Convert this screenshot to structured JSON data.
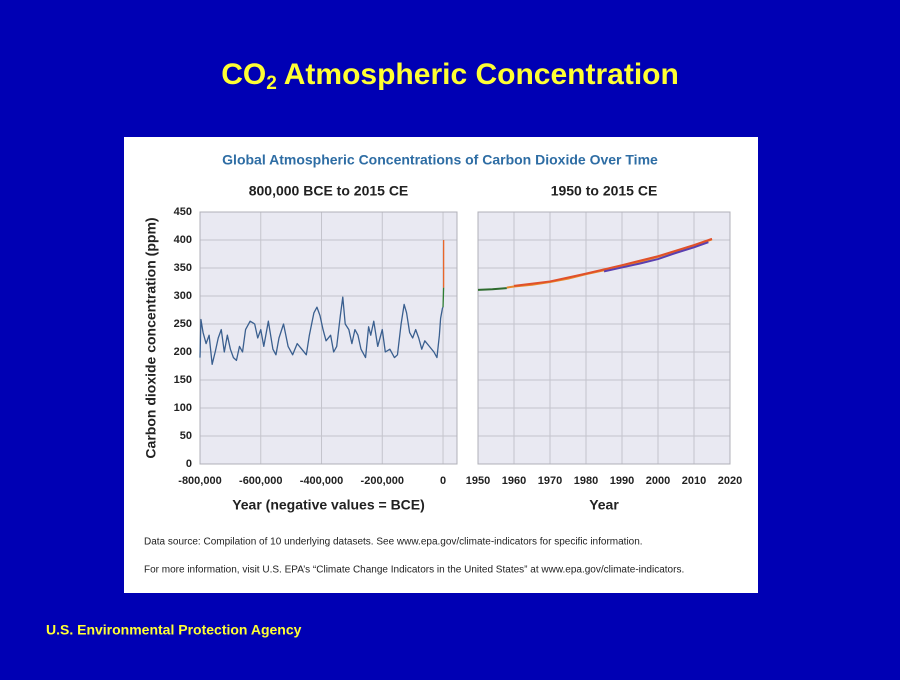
{
  "slide": {
    "title": {
      "main": "CO",
      "subscript": "2",
      "rest": "Atmospheric Concentration"
    },
    "footer": "U.S. Environmental Protection Agency"
  },
  "figure": {
    "title": "Global Atmospheric Concentrations of Carbon Dioxide Over Time",
    "notes": [
      "Data source: Compilation of 10 underlying datasets. See www.epa.gov/climate-indicators for specific information.",
      "For more information, visit U.S. EPA’s “Climate Change Indicators in the United States” at www.epa.gov/climate-indicators."
    ]
  },
  "chart_data": [
    {
      "type": "line",
      "title": "800,000 BCE to 2015 CE",
      "x_label": "Year (negative values = BCE)",
      "y_label": "Carbon dioxide concentration (ppm)",
      "xlim": [
        -800000,
        46000
      ],
      "ylim": [
        0,
        450
      ],
      "xticks": [
        {
          "value": -800000,
          "label": "-800,000"
        },
        {
          "value": -600000,
          "label": "-600,000"
        },
        {
          "value": -400000,
          "label": "-400,000"
        },
        {
          "value": -200000,
          "label": "-200,000"
        },
        0
      ],
      "yticks": [
        0,
        50,
        100,
        150,
        200,
        250,
        300,
        350,
        400,
        450
      ],
      "show_ytick_labels": true,
      "grid": true,
      "series": [
        {
          "color": "#3a5f8f",
          "x": [
            -800000,
            -797000,
            -790000,
            -780000,
            -770000,
            -760000,
            -750000,
            -740000,
            -730000,
            -720000,
            -710000,
            -700000,
            -690000,
            -680000,
            -670000,
            -660000,
            -650000,
            -635000,
            -620000,
            -610000,
            -600000,
            -590000,
            -575000,
            -560000,
            -550000,
            -540000,
            -525000,
            -510000,
            -495000,
            -480000,
            -465000,
            -450000,
            -440000,
            -425000,
            -415000,
            -405000,
            -395000,
            -385000,
            -370000,
            -360000,
            -350000,
            -338000,
            -330000,
            -322000,
            -310000,
            -300000,
            -290000,
            -280000,
            -270000,
            -255000,
            -245000,
            -238000,
            -228000,
            -215000,
            -200000,
            -190000,
            -175000,
            -160000,
            -150000,
            -138000,
            -128000,
            -120000,
            -110000,
            -100000,
            -90000,
            -80000,
            -70000,
            -60000,
            -45000,
            -30000,
            -20000,
            -12000,
            -8000,
            -2000,
            0
          ],
          "values": [
            190,
            258,
            235,
            215,
            230,
            178,
            200,
            225,
            240,
            200,
            230,
            205,
            190,
            185,
            210,
            200,
            240,
            255,
            250,
            225,
            240,
            210,
            255,
            205,
            195,
            225,
            250,
            210,
            195,
            215,
            205,
            195,
            230,
            270,
            280,
            265,
            240,
            220,
            230,
            200,
            210,
            265,
            298,
            250,
            240,
            215,
            240,
            230,
            205,
            190,
            245,
            230,
            255,
            210,
            240,
            200,
            205,
            190,
            195,
            250,
            285,
            270,
            235,
            225,
            240,
            225,
            205,
            220,
            210,
            200,
            190,
            230,
            260,
            278,
            280
          ]
        },
        {
          "color": "#2e7d32",
          "x": [
            0,
            1958
          ],
          "values": [
            280,
            315
          ]
        },
        {
          "color": "#e8662a",
          "x": [
            1958,
            2015
          ],
          "values": [
            315,
            400
          ]
        }
      ]
    },
    {
      "type": "line",
      "title": "1950 to 2015 CE",
      "x_label": "Year",
      "xlim": [
        1950,
        2020
      ],
      "ylim": [
        0,
        450
      ],
      "xticks": [
        1950,
        1960,
        1970,
        1980,
        1990,
        2000,
        2010,
        2020
      ],
      "yticks": [
        0,
        50,
        100,
        150,
        200,
        250,
        300,
        350,
        400,
        450
      ],
      "show_ytick_labels": false,
      "grid": true,
      "series": [
        {
          "color": "#2e6b2e",
          "x": [
            1950,
            1954,
            1958
          ],
          "values": [
            311,
            312,
            314
          ]
        },
        {
          "color": "#e8862a",
          "x": [
            1958,
            1960,
            1965,
            1970,
            1975,
            1980,
            1985,
            1990,
            1995,
            2000,
            2005,
            2010,
            2015
          ],
          "values": [
            315,
            317,
            320,
            325,
            331,
            339,
            346,
            354,
            361,
            370,
            380,
            390,
            401
          ]
        },
        {
          "color": "#5a3fb0",
          "x": [
            1985,
            1990,
            1995,
            2000,
            2005,
            2010,
            2014
          ],
          "values": [
            344,
            351,
            358,
            366,
            377,
            387,
            396
          ]
        },
        {
          "color": "#e0502a",
          "x": [
            1960,
            1970,
            1980,
            1990,
            2000,
            2010,
            2015
          ],
          "values": [
            318,
            326,
            340,
            355,
            371,
            391,
            402
          ]
        }
      ]
    }
  ]
}
